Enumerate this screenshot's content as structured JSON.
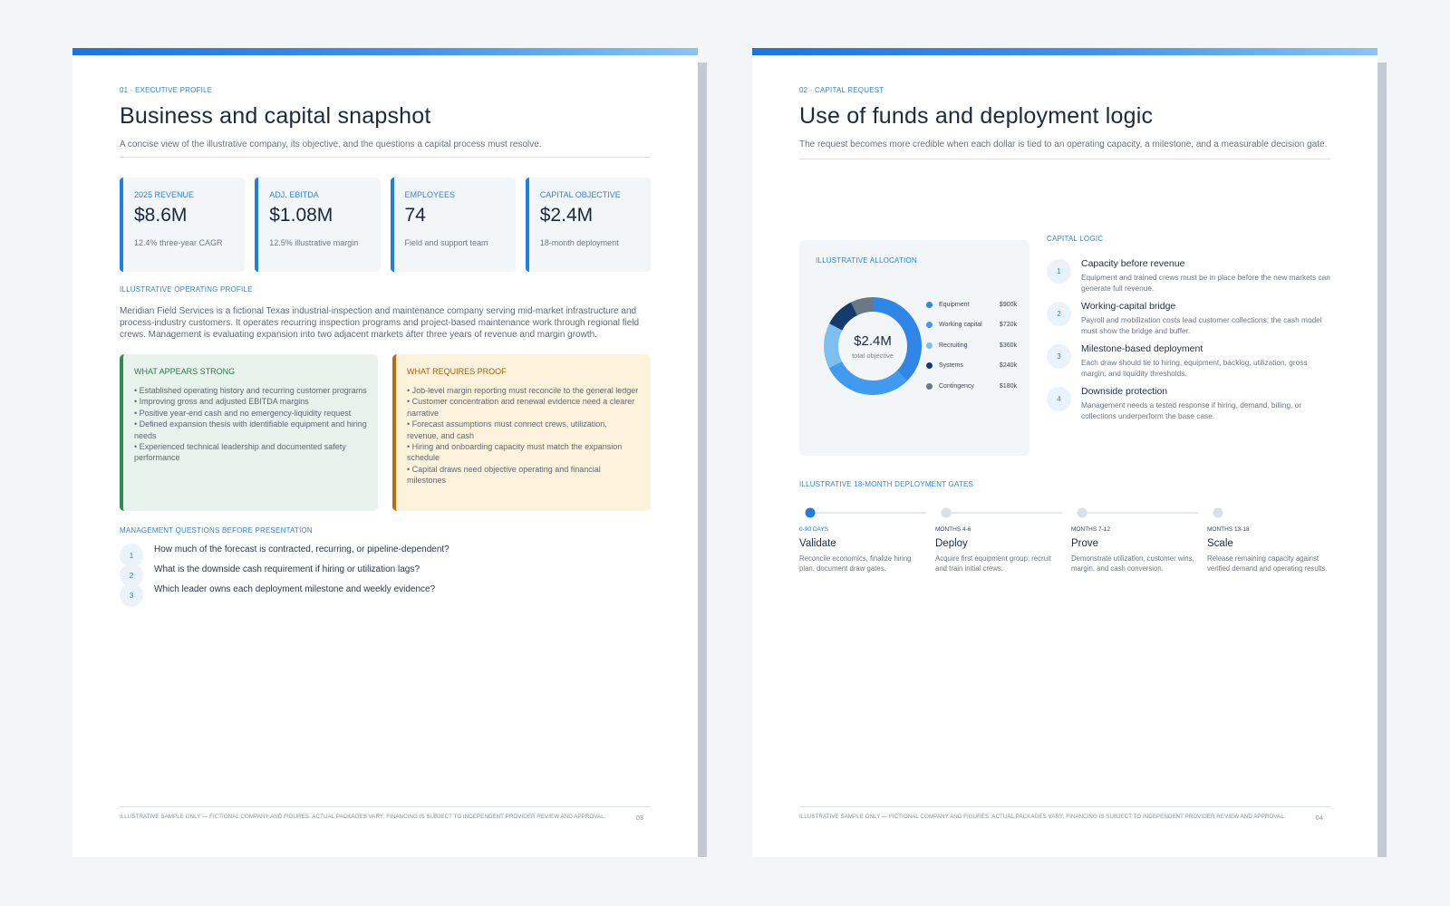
{
  "page1": {
    "kicker": "01 · Executive profile",
    "title": "Business and capital snapshot",
    "lead": "A concise view of the illustrative company, its objective, and the questions a capital process must resolve.",
    "kpis": [
      {
        "label": "2025 Revenue",
        "value": "$8.6M",
        "sub": "12.4% three-year CAGR"
      },
      {
        "label": "Adj. EBITDA",
        "value": "$1.08M",
        "sub": "12.5% illustrative margin"
      },
      {
        "label": "Employees",
        "value": "74",
        "sub": "Field and support team"
      },
      {
        "label": "Capital objective",
        "value": "$2.4M",
        "sub": "18-month deployment"
      }
    ],
    "profile_label": "Illustrative operating profile",
    "profile_text": "Meridian Field Services is a fictional Texas industrial-inspection and maintenance company serving mid-market infrastructure and process-industry customers. It operates recurring inspection programs and project-based maintenance work through regional field crews. Management is evaluating expansion into two adjacent markets after three years of revenue and margin growth.",
    "strong": {
      "title": "What appears strong",
      "items": [
        "• Established operating history and recurring customer programs",
        "• Improving gross and adjusted EBITDA margins",
        "• Positive year-end cash and no emergency-liquidity request",
        "• Defined expansion thesis with identifiable equipment and hiring needs",
        "• Experienced technical leadership and documented safety performance"
      ]
    },
    "proof": {
      "title": "What requires proof",
      "items": [
        "• Job-level margin reporting must reconcile to the general ledger",
        "• Customer concentration and renewal evidence need a clearer narrative",
        "• Forecast assumptions must connect crews, utilization, revenue, and cash",
        "• Hiring and onboarding capacity must match the expansion schedule",
        "• Capital draws need objective operating and financial milestones"
      ]
    },
    "questions_label": "Management questions before presentation",
    "questions": [
      {
        "num": "1",
        "text": "How much of the forecast is contracted, recurring, or pipeline-dependent?"
      },
      {
        "num": "2",
        "text": "What is the downside cash requirement if hiring or utilization lags?"
      },
      {
        "num": "3",
        "text": "Which leader owns each deployment milestone and weekly evidence?"
      }
    ],
    "footer_note": "Illustrative sample only — fictional company and figures. Actual packages vary; financing is subject to independent provider review and approval.",
    "page_number": "03"
  },
  "page2": {
    "kicker": "02 · Capital request",
    "title": "Use of funds and deployment logic",
    "lead": "The request becomes more credible when each dollar is tied to an operating capacity, a milestone, and a measurable decision gate.",
    "allocation_label": "Illustrative allocation",
    "donut_value": "$2.4M",
    "donut_sub": "total objective",
    "logic_label": "Capital logic",
    "logic": [
      {
        "num": "1",
        "title": "Capacity before revenue",
        "desc": "Equipment and trained crews must be in place before the new markets can generate full revenue."
      },
      {
        "num": "2",
        "title": "Working-capital bridge",
        "desc": "Payroll and mobilization costs lead customer collections; the cash model must show the bridge and buffer."
      },
      {
        "num": "3",
        "title": "Milestone-based deployment",
        "desc": "Each draw should tie to hiring, equipment, backlog, utilization, gross margin, and liquidity thresholds."
      },
      {
        "num": "4",
        "title": "Downside protection",
        "desc": "Management needs a tested response if hiring, demand, billing, or collections underperform the base case."
      }
    ],
    "gates_label": "Illustrative 18-month deployment gates",
    "gates": [
      {
        "period": "0-90 days",
        "title": "Validate",
        "desc": "Reconcile economics, finalize hiring plan, document draw gates.",
        "active": true
      },
      {
        "period": "Months 4-6",
        "title": "Deploy",
        "desc": "Acquire first equipment group; recruit and train initial crews.",
        "active": false
      },
      {
        "period": "Months 7-12",
        "title": "Prove",
        "desc": "Demonstrate utilization, customer wins, margin, and cash conversion.",
        "active": false
      },
      {
        "period": "Months 13-18",
        "title": "Scale",
        "desc": "Release remaining capacity against verified demand and operating results.",
        "active": false
      }
    ],
    "footer_note": "Illustrative sample only — fictional company and figures. Actual packages vary; financing is subject to independent provider review and approval.",
    "page_number": "04"
  },
  "chart_data": {
    "type": "pie",
    "donut": true,
    "categories": [
      "Equipment",
      "Working capital",
      "Recruiting",
      "Systems",
      "Contingency"
    ],
    "values": [
      900,
      720,
      360,
      240,
      180
    ],
    "value_labels": [
      "$900k",
      "$720k",
      "$360k",
      "$240k",
      "$180k"
    ],
    "colors": [
      "#2f86e6",
      "#3f9af0",
      "#7cc0f3",
      "#163a6b",
      "#6b7785"
    ],
    "legend": "right"
  }
}
